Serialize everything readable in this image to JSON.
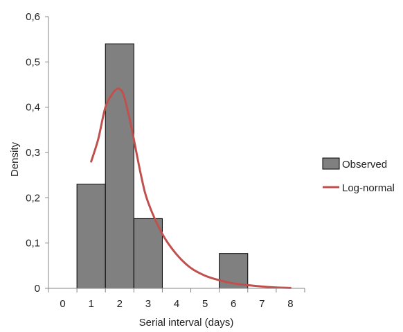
{
  "chart_data": {
    "type": "bar",
    "xlabel": "Serial interval (days)",
    "ylabel": "Density",
    "xlim": [
      -0.5,
      8.5
    ],
    "ylim": [
      0,
      0.6
    ],
    "x_ticks": [
      "0",
      "1",
      "2",
      "3",
      "4",
      "5",
      "6",
      "7",
      "8"
    ],
    "y_ticks": [
      "0",
      "0,1",
      "0,2",
      "0,3",
      "0,4",
      "0,5",
      "0,6"
    ],
    "grid": false,
    "legend": "right",
    "series": [
      {
        "name": "Observed",
        "type": "bar",
        "color": "#808080",
        "bins": [
          {
            "x0": 0.5,
            "x1": 1.5,
            "value": 0.23
          },
          {
            "x0": 1.5,
            "x1": 2.5,
            "value": 0.54
          },
          {
            "x0": 2.5,
            "x1": 3.5,
            "value": 0.154
          },
          {
            "x0": 5.5,
            "x1": 6.5,
            "value": 0.077
          }
        ]
      },
      {
        "name": "Log-normal",
        "type": "line",
        "color": "#c0504d",
        "x": [
          1.0,
          1.25,
          1.5,
          1.75,
          1.9,
          2.0,
          2.15,
          2.4,
          2.75,
          3.0,
          3.5,
          4.0,
          4.5,
          5.0,
          5.5,
          6.0,
          6.5,
          7.0,
          7.5,
          8.0
        ],
        "y": [
          0.28,
          0.33,
          0.4,
          0.43,
          0.44,
          0.44,
          0.425,
          0.36,
          0.25,
          0.19,
          0.12,
          0.075,
          0.045,
          0.028,
          0.018,
          0.011,
          0.007,
          0.004,
          0.002,
          0.001
        ]
      }
    ]
  }
}
